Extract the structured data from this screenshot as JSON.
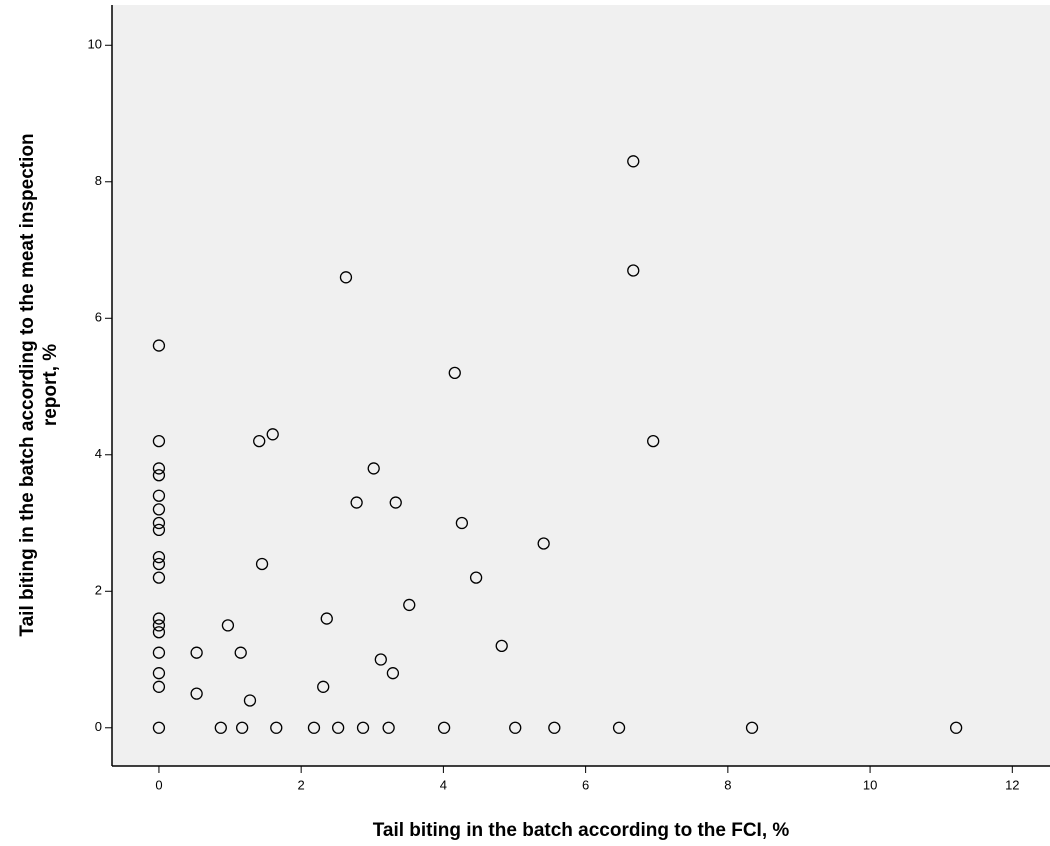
{
  "chart_data": {
    "type": "scatter",
    "x_label": "Tail biting in the batch according to the FCI, %",
    "y_label": [
      "Tail biting in the batch according to the meat inspection",
      "report, %"
    ],
    "x": [
      6.67,
      6.67,
      2.63,
      0,
      4.16,
      0,
      1.41,
      1.6,
      6.95,
      0,
      0,
      3.02,
      0,
      2.78,
      3.33,
      0,
      0,
      0,
      4.26,
      5.41,
      0,
      0,
      1.45,
      0,
      4.46,
      3.52,
      0,
      2.36,
      0,
      0,
      0.97,
      4.82,
      0,
      0.53,
      1.15,
      3.12,
      0,
      3.29,
      0,
      2.31,
      0.53,
      1.28,
      0,
      0.87,
      1.17,
      1.65,
      2.18,
      2.52,
      2.87,
      3.23,
      4.01,
      5.01,
      5.56,
      6.47,
      8.34,
      11.21
    ],
    "values": [
      8.3,
      6.7,
      6.6,
      5.6,
      5.2,
      4.2,
      4.2,
      4.3,
      4.2,
      3.8,
      3.7,
      3.8,
      3.4,
      3.3,
      3.3,
      3.2,
      3.0,
      2.9,
      3.0,
      2.7,
      2.5,
      2.4,
      2.4,
      2.2,
      2.2,
      1.8,
      1.6,
      1.6,
      1.5,
      1.4,
      1.5,
      1.2,
      1.1,
      1.1,
      1.1,
      1.0,
      0.8,
      0.8,
      0.6,
      0.6,
      0.5,
      0.4,
      0,
      0,
      0,
      0,
      0,
      0,
      0,
      0,
      0,
      0,
      0,
      0,
      0,
      0
    ],
    "color": "#000000",
    "xlim": [
      -0.66,
      12.53
    ],
    "ylim": [
      -0.56,
      10.59
    ],
    "xticks": [
      0,
      2,
      4,
      6,
      8,
      10,
      12
    ],
    "yticks": [
      0,
      2,
      4,
      6,
      8,
      10
    ],
    "grid": false
  }
}
